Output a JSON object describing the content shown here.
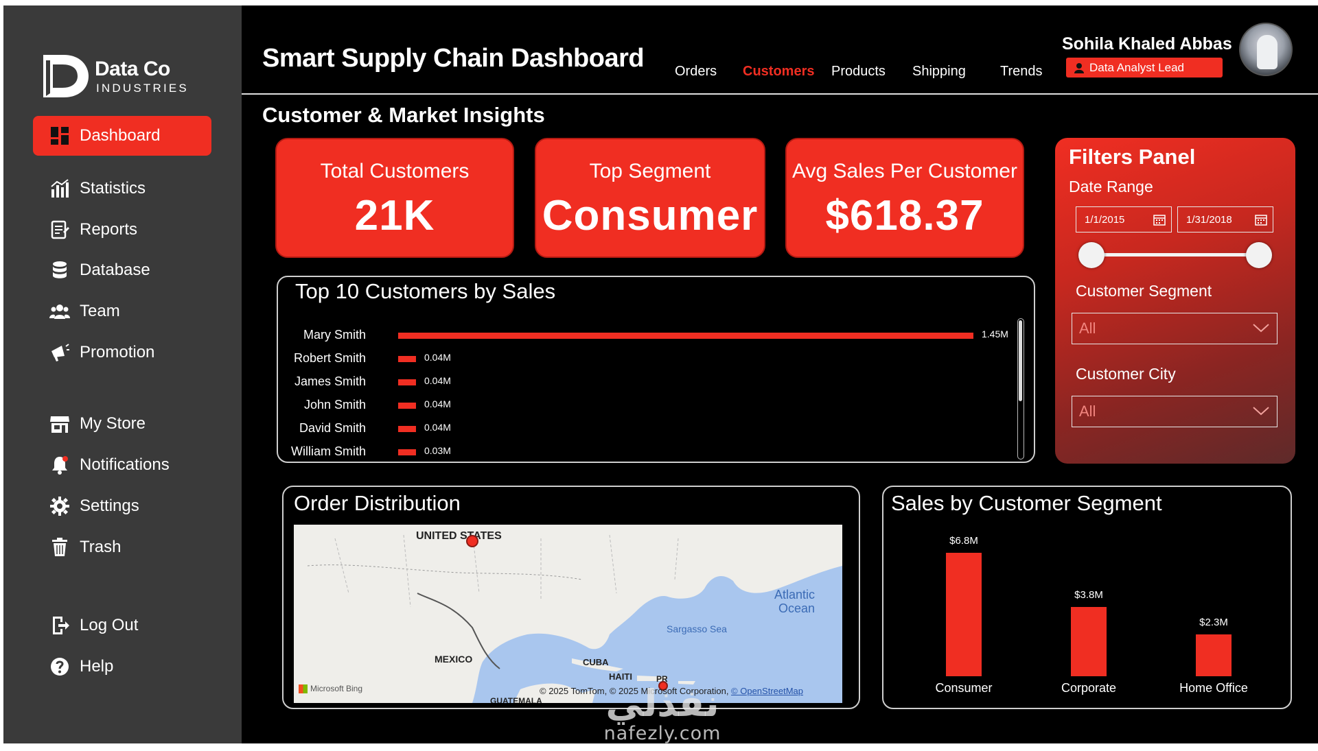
{
  "app": {
    "title": "Smart Supply Chain Dashboard"
  },
  "logo": {
    "name": "Data Co",
    "sub": "INDUSTRIES"
  },
  "sidebar": {
    "items": [
      {
        "label": "Dashboard",
        "icon": "dashboard-icon",
        "active": true
      },
      {
        "label": "Statistics",
        "icon": "bar-chart-icon"
      },
      {
        "label": "Reports",
        "icon": "report-icon"
      },
      {
        "label": "Database",
        "icon": "database-icon"
      },
      {
        "label": "Team",
        "icon": "team-icon"
      },
      {
        "label": "Promotion",
        "icon": "megaphone-icon"
      },
      {
        "label": "My Store",
        "icon": "store-icon"
      },
      {
        "label": "Notifications",
        "icon": "bell-icon"
      },
      {
        "label": "Settings",
        "icon": "gear-icon"
      },
      {
        "label": "Trash",
        "icon": "trash-icon"
      },
      {
        "label": "Log Out",
        "icon": "logout-icon"
      },
      {
        "label": "Help",
        "icon": "help-icon"
      }
    ]
  },
  "header": {
    "tabs": [
      {
        "label": "Orders"
      },
      {
        "label": "Customers",
        "active": true
      },
      {
        "label": "Products"
      },
      {
        "label": "Shipping"
      },
      {
        "label": "Trends"
      }
    ],
    "user": {
      "name": "Sohila Khaled Abbas",
      "role": "Data Analyst Lead"
    }
  },
  "section": {
    "title": "Customer & Market Insights"
  },
  "kpis": [
    {
      "label": "Total Customers",
      "value": "21K"
    },
    {
      "label": "Top Segment",
      "value": "Consumer"
    },
    {
      "label": "Avg Sales Per Customer",
      "value": "$618.37"
    }
  ],
  "top_customers": {
    "title": "Top 10 Customers by Sales"
  },
  "filters": {
    "title": "Filters Panel",
    "date_range_label": "Date Range",
    "date_start": "1/1/2015",
    "date_end": "1/31/2018",
    "segment_label": "Customer Segment",
    "segment_value": "All",
    "city_label": "Customer City",
    "city_value": "All"
  },
  "map": {
    "title": "Order Distribution",
    "labels": {
      "us": "UNITED STATES",
      "mexico": "MEXICO",
      "cuba": "CUBA",
      "haiti": "HAITI",
      "guatemala": "GUATEMALA",
      "pr": "PR",
      "atlantic_1": "Atlantic",
      "atlantic_2": "Ocean",
      "sargasso": "Sargasso Sea"
    },
    "attribution_pre": "© 2025 TomTom, © 2025 Microsoft Corporation, ",
    "attribution_link": "© OpenStreetMap",
    "bing": "Microsoft Bing"
  },
  "segment": {
    "title": "Sales by Customer Segment"
  },
  "watermark": {
    "ar": "نفذلي",
    "en": "nafezly.com"
  },
  "chart_data": [
    {
      "type": "bar",
      "orientation": "horizontal",
      "title": "Top 10 Customers by Sales",
      "categories": [
        "Mary Smith",
        "Robert Smith",
        "James Smith",
        "John Smith",
        "David Smith",
        "William Smith"
      ],
      "values": [
        1.45,
        0.04,
        0.04,
        0.04,
        0.04,
        0.03
      ],
      "data_labels": [
        "1.45M",
        "0.04M",
        "0.04M",
        "0.04M",
        "0.04M",
        "0.03M"
      ],
      "unit": "M",
      "color": "#f02e22"
    },
    {
      "type": "bar",
      "title": "Sales by Customer Segment",
      "categories": [
        "Consumer",
        "Corporate",
        "Home Office"
      ],
      "values": [
        6.8,
        3.8,
        2.3
      ],
      "data_labels": [
        "$6.8M",
        "$3.8M",
        "$2.3M"
      ],
      "unit": "$M",
      "color": "#f02e22"
    }
  ],
  "colors": {
    "accent": "#f02e22",
    "sidebar": "#3a3a3a",
    "background": "#000000"
  }
}
